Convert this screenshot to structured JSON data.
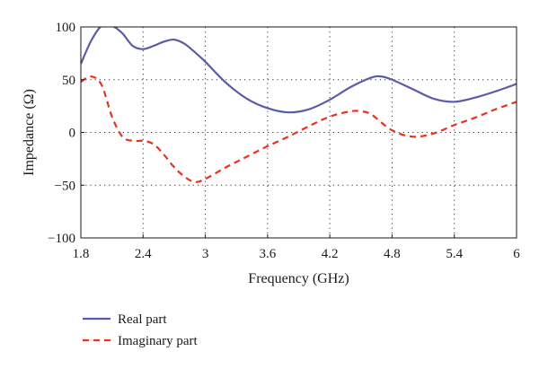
{
  "chart_data": {
    "type": "line",
    "title": "",
    "xlabel": "Frequency (GHz)",
    "ylabel": "Impedance (Ω)",
    "xlim": [
      1.8,
      6
    ],
    "ylim": [
      -100,
      100
    ],
    "xticks": [
      "1.8",
      "2.4",
      "3",
      "3.6",
      "4.2",
      "4.8",
      "5.4",
      "6"
    ],
    "yticks": [
      "100",
      "50",
      "0",
      "−50",
      "−100"
    ],
    "grid": true,
    "legend_position": "bottom-left",
    "series": [
      {
        "name": "Real part",
        "color": "#5b5ba8",
        "dash": "solid",
        "x": [
          1.8,
          1.9,
          2.0,
          2.1,
          2.2,
          2.3,
          2.4,
          2.5,
          2.6,
          2.7,
          2.8,
          2.9,
          3.0,
          3.2,
          3.4,
          3.6,
          3.8,
          4.0,
          4.2,
          4.4,
          4.6,
          4.7,
          4.8,
          5.0,
          5.2,
          5.4,
          5.6,
          5.8,
          6.0
        ],
        "y": [
          65,
          87,
          101,
          101,
          94,
          82,
          79,
          82,
          86,
          88,
          84,
          76,
          67,
          47,
          32,
          23,
          19,
          22,
          31,
          43,
          52,
          53,
          50,
          41,
          32,
          29,
          33,
          39,
          46
        ]
      },
      {
        "name": "Imaginary part",
        "color": "#e8321e",
        "dash": "dashed",
        "x": [
          1.8,
          1.9,
          2.0,
          2.1,
          2.2,
          2.3,
          2.4,
          2.5,
          2.6,
          2.7,
          2.8,
          2.9,
          3.0,
          3.2,
          3.4,
          3.6,
          3.8,
          4.0,
          4.2,
          4.4,
          4.5,
          4.6,
          4.8,
          5.0,
          5.2,
          5.4,
          5.6,
          5.8,
          6.0
        ],
        "y": [
          48,
          53,
          45,
          15,
          -4,
          -8,
          -8,
          -11,
          -21,
          -33,
          -42,
          -47,
          -44,
          -33,
          -23,
          -13,
          -4,
          6,
          15,
          20,
          20,
          17,
          2,
          -4,
          -1,
          7,
          14,
          22,
          29
        ]
      }
    ]
  }
}
